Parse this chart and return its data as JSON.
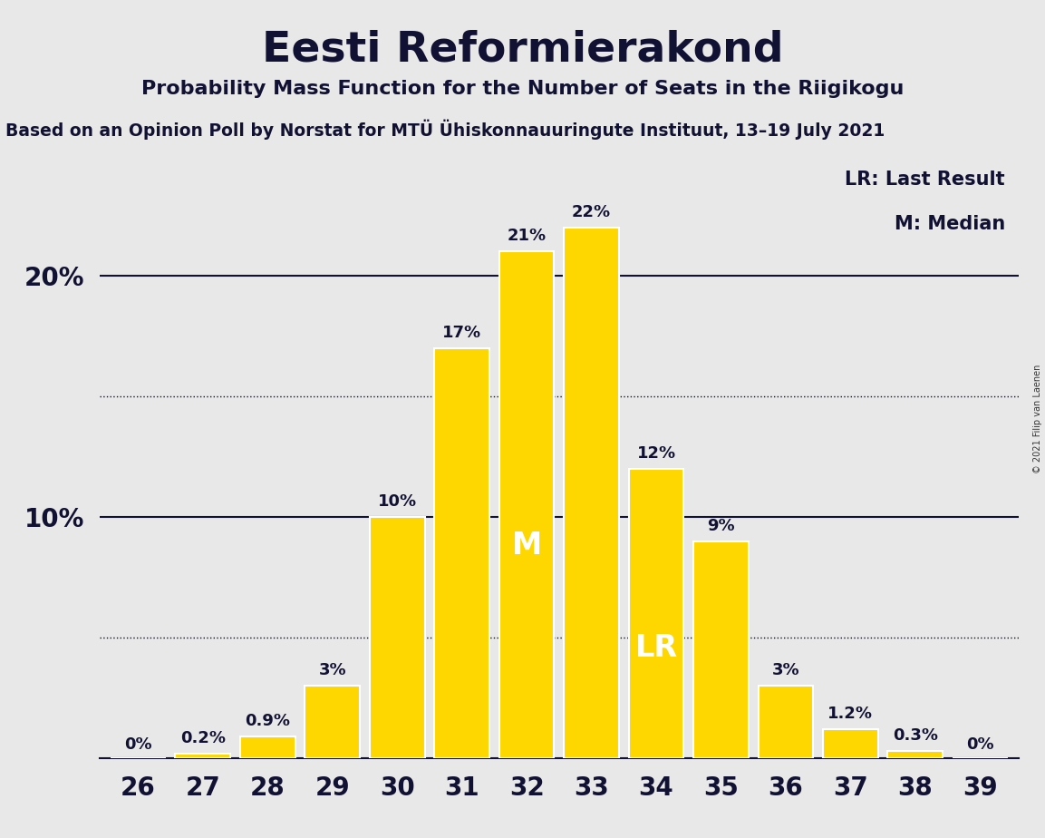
{
  "title": "Eesti Reformierakond",
  "subtitle": "Probability Mass Function for the Number of Seats in the Riigikogu",
  "source_line": "Based on an Opinion Poll by Norstat for MTÜ Ühiskonnauuringute Instituut, 13–19 July 2021",
  "copyright": "© 2021 Filip van Laenen",
  "legend_lr": "LR: Last Result",
  "legend_m": "M: Median",
  "seats": [
    26,
    27,
    28,
    29,
    30,
    31,
    32,
    33,
    34,
    35,
    36,
    37,
    38,
    39
  ],
  "values": [
    0.0,
    0.2,
    0.9,
    3.0,
    10.0,
    17.0,
    21.0,
    22.0,
    12.0,
    9.0,
    3.0,
    1.2,
    0.3,
    0.0
  ],
  "labels": [
    "0%",
    "0.2%",
    "0.9%",
    "3%",
    "10%",
    "17%",
    "21%",
    "22%",
    "12%",
    "9%",
    "3%",
    "1.2%",
    "0.3%",
    "0%"
  ],
  "bar_color": "#FFD700",
  "bar_edgecolor": "#FFFFFF",
  "background_color": "#E8E8E8",
  "median_seat": 32,
  "lr_seat": 34,
  "median_label": "M",
  "lr_label": "LR",
  "label_color_dark": "#111133",
  "label_color_light": "#FFFFFF",
  "ylim": [
    0,
    25
  ],
  "solid_yticks": [
    10,
    20
  ],
  "dotted_yticks": [
    5,
    15
  ],
  "title_fontsize": 34,
  "subtitle_fontsize": 16,
  "source_fontsize": 13.5,
  "tick_fontsize": 20,
  "label_fontsize": 13,
  "inner_label_fontsize": 24
}
